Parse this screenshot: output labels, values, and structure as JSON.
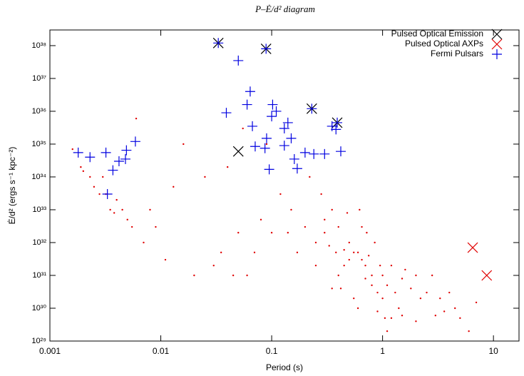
{
  "chart_data": {
    "type": "scatter",
    "title": "P–Ė/d² diagram",
    "xlabel": "Period (s)",
    "ylabel": "Ė/d² (ergs s⁻¹ kpc⁻²)",
    "xscale": "log",
    "yscale": "log",
    "xlim": [
      0.001,
      17
    ],
    "ylim": [
      1e+29,
      3e+38
    ],
    "xticks": [
      0.001,
      0.01,
      0.1,
      1,
      10
    ],
    "yticks": [
      {
        "value": 1e+29,
        "label": "10²⁹"
      },
      {
        "value": 1e+30,
        "label": "10³⁰"
      },
      {
        "value": 1e+31,
        "label": "10³¹"
      },
      {
        "value": 1e+32,
        "label": "10³²"
      },
      {
        "value": 1e+33,
        "label": "10³³"
      },
      {
        "value": 1e+34,
        "label": "10³⁴"
      },
      {
        "value": 1e+35,
        "label": "10³⁵"
      },
      {
        "value": 1e+36,
        "label": "10³⁶"
      },
      {
        "value": 1e+37,
        "label": "10³⁷"
      },
      {
        "value": 1e+38,
        "label": "10³⁸"
      }
    ],
    "legend": "top-right",
    "series": [
      {
        "color": "#e00000",
        "marker": "dot",
        "x": [
          0.0016,
          0.0019,
          0.002,
          0.0023,
          0.0025,
          0.0028,
          0.003,
          0.0032,
          0.0035,
          0.0038,
          0.004,
          0.0045,
          0.005,
          0.0055,
          0.006,
          0.007,
          0.008,
          0.009,
          0.011,
          0.013,
          0.016,
          0.02,
          0.025,
          0.03,
          0.035,
          0.04,
          0.045,
          0.05,
          0.055,
          0.06,
          0.07,
          0.08,
          0.09,
          0.1,
          0.12,
          0.14,
          0.15,
          0.17,
          0.2,
          0.22,
          0.25,
          0.28,
          0.3,
          0.33,
          0.35,
          0.38,
          0.4,
          0.42,
          0.45,
          0.48,
          0.5,
          0.55,
          0.6,
          0.62,
          0.65,
          0.7,
          0.72,
          0.75,
          0.8,
          0.85,
          0.9,
          0.95,
          1,
          1.05,
          1.1,
          1.2,
          1.3,
          1.4,
          1.5,
          1.6,
          1.8,
          2,
          2.2,
          2.5,
          2.8,
          3,
          3.3,
          3.6,
          4,
          4.5,
          5,
          6,
          7,
          0.5,
          0.6,
          0.8,
          1,
          1.2,
          0.4,
          0.3,
          0.7,
          0.9,
          1.5,
          2,
          0.25,
          0.45,
          0.55,
          1.1,
          0.35,
          0.65
        ],
        "values": [
          7e+34,
          2e+34,
          1.5e+34,
          1e+34,
          5e+33,
          3e+33,
          1e+34,
          3e+33,
          1e+33,
          8e+32,
          2e+33,
          1e+33,
          5e+32,
          3e+32,
          6e+35,
          1e+32,
          1e+33,
          3e+32,
          3e+31,
          5e+33,
          1e+35,
          1e+31,
          1e+34,
          2e+31,
          5e+31,
          2e+34,
          1e+31,
          2e+32,
          3e+35,
          1e+31,
          5e+31,
          5e+32,
          1e+35,
          2e+32,
          3e+33,
          2e+32,
          1e+33,
          5e+31,
          3e+32,
          1e+34,
          1e+32,
          3e+33,
          2e+32,
          8e+31,
          1e+33,
          5e+31,
          3e+32,
          4e+30,
          2e+31,
          8e+32,
          1e+32,
          2e+30,
          5e+31,
          1e+33,
          3e+31,
          8e+30,
          2e+32,
          4e+31,
          1e+31,
          1e+32,
          3e+30,
          2e+31,
          1e+31,
          5e+29,
          5e+30,
          2e+31,
          3e+30,
          1e+30,
          8e+30,
          1.5e+31,
          4e+30,
          1e+31,
          2e+30,
          3e+30,
          1e+31,
          6e+29,
          2e+30,
          8e+29,
          3e+30,
          1e+30,
          5e+29,
          2e+29,
          1.5e+30,
          3e+31,
          1e+30,
          5e+30,
          2e+30,
          5e+29,
          1e+31,
          5e+32,
          2e+31,
          8e+29,
          6e+29,
          4e+29,
          2e+31,
          6e+31,
          5e+31,
          2e+29,
          4e+30,
          3e+32
        ]
      },
      {
        "name": "Pulsed Optical Emission",
        "color": "#000000",
        "marker": "x",
        "x": [
          0.033,
          0.089,
          0.23,
          0.39,
          0.05
        ],
        "values": [
          1.2e+38,
          8e+37,
          1.2e+36,
          4.5e+35,
          6e+34
        ]
      },
      {
        "name": "Pulsed Optical AXPs",
        "color": "#e00000",
        "marker": "x",
        "x": [
          6.5,
          8.7
        ],
        "values": [
          7e+31,
          1e+31
        ]
      },
      {
        "name": "Fermi Pulsars",
        "color": "#0000e0",
        "marker": "+",
        "x": [
          0.0018,
          0.0023,
          0.0032,
          0.0033,
          0.0037,
          0.0042,
          0.0048,
          0.0049,
          0.0059,
          0.033,
          0.039,
          0.05,
          0.06,
          0.064,
          0.067,
          0.071,
          0.089,
          0.087,
          0.09,
          0.095,
          0.1,
          0.102,
          0.11,
          0.13,
          0.14,
          0.15,
          0.16,
          0.17,
          0.2,
          0.23,
          0.24,
          0.3,
          0.35,
          0.38,
          0.39,
          0.42,
          0.13
        ],
        "values": [
          5.5e+34,
          4e+34,
          5.5e+34,
          3e+33,
          1.6e+34,
          3e+34,
          3.5e+34,
          6.5e+34,
          1.2e+35,
          1.2e+38,
          9e+35,
          3.5e+37,
          1.6e+36,
          4e+36,
          3.5e+35,
          8.5e+34,
          8e+37,
          7.5e+34,
          1.5e+35,
          1.7e+34,
          7e+35,
          1.6e+36,
          1e+36,
          3e+35,
          4.5e+35,
          1.5e+35,
          3.5e+34,
          1.8e+34,
          5.5e+34,
          1.2e+36,
          5e+34,
          5e+34,
          3.5e+35,
          2.8e+35,
          4.5e+35,
          6e+34,
          9e+34
        ]
      }
    ]
  }
}
